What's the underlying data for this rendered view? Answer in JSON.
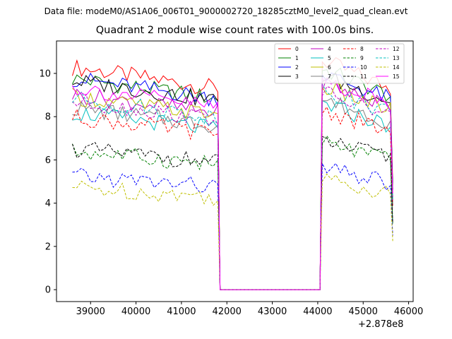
{
  "suptitle": "Data file: modeM0/AS1A06_006T01_9000002720_18285cztM0_level2_quad_clean.evt",
  "chart_data": {
    "type": "line",
    "title": "Quadrant 2 module wise count rates with 100.0s bins.",
    "xlabel": "",
    "ylabel": "",
    "x_offset_label": "+2.878e8",
    "xlim": [
      38250,
      46100
    ],
    "ylim": [
      -0.55,
      11.5
    ],
    "xticks": [
      39000,
      40000,
      41000,
      42000,
      43000,
      44000,
      45000,
      46000
    ],
    "yticks": [
      0,
      2,
      4,
      6,
      8,
      10
    ],
    "legend_location": "top-right",
    "segments": [
      {
        "x_start": 38600,
        "x_end": 41800,
        "step": 100
      },
      {
        "x_start": 44100,
        "x_end": 45600,
        "step": 100
      }
    ],
    "gap": {
      "x": [
        41850,
        44050
      ],
      "value": 0
    },
    "series": [
      {
        "name": "0",
        "color": "#ff0000",
        "dashed": false,
        "level_on": 9.8,
        "level_peak": 10.6
      },
      {
        "name": "1",
        "color": "#008000",
        "dashed": false,
        "level_on": 9.3,
        "level_peak": 10.2
      },
      {
        "name": "2",
        "color": "#0000ff",
        "dashed": false,
        "level_on": 9.3,
        "level_peak": 10.0
      },
      {
        "name": "3",
        "color": "#000000",
        "dashed": false,
        "level_on": 9.2,
        "level_peak": 9.9
      },
      {
        "name": "4",
        "color": "#c000c0",
        "dashed": false,
        "level_on": 8.6,
        "level_peak": 9.6
      },
      {
        "name": "5",
        "color": "#00bfbf",
        "dashed": false,
        "level_on": 7.8,
        "level_peak": 8.6
      },
      {
        "name": "6",
        "color": "#bfbf00",
        "dashed": false,
        "level_on": 8.5,
        "level_peak": 9.4
      },
      {
        "name": "7",
        "color": "#808080",
        "dashed": false,
        "level_on": 8.0,
        "level_peak": 8.8
      },
      {
        "name": "8",
        "color": "#ff0000",
        "dashed": true,
        "level_on": 7.6,
        "level_peak": 8.3
      },
      {
        "name": "9",
        "color": "#008000",
        "dashed": true,
        "level_on": 6.1,
        "level_peak": 6.8
      },
      {
        "name": "10",
        "color": "#0000ff",
        "dashed": true,
        "level_on": 5.0,
        "level_peak": 5.6
      },
      {
        "name": "11",
        "color": "#000000",
        "dashed": true,
        "level_on": 6.2,
        "level_peak": 6.9
      },
      {
        "name": "12",
        "color": "#c000c0",
        "dashed": true,
        "level_on": 8.3,
        "level_peak": 9.1
      },
      {
        "name": "13",
        "color": "#00bfbf",
        "dashed": true,
        "level_on": 8.4,
        "level_peak": 9.3
      },
      {
        "name": "14",
        "color": "#bfbf00",
        "dashed": true,
        "level_on": 4.5,
        "level_peak": 5.1
      },
      {
        "name": "15",
        "color": "#ff00ff",
        "dashed": false,
        "level_on": 8.9,
        "level_peak": 9.7
      }
    ]
  }
}
